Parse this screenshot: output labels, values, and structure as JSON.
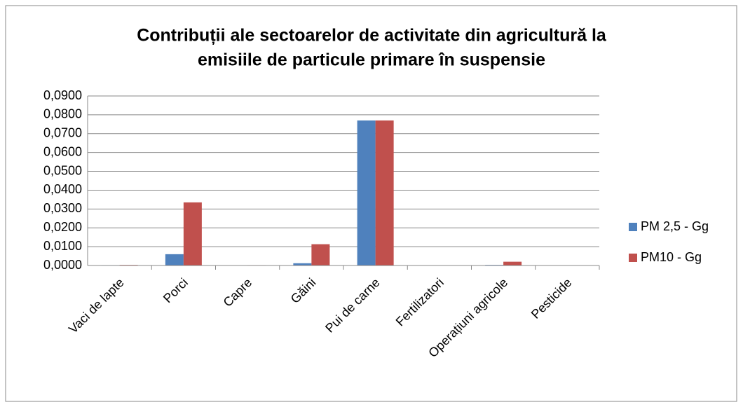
{
  "chart_data": {
    "type": "bar",
    "title": [
      "Contribuții ale sectoarelor de activitate din agricultură la",
      "emisiile de particule primare în suspensie"
    ],
    "categories": [
      "Vaci de lapte",
      "Porci",
      "Capre",
      "Găini",
      "Pui de carne",
      "Fertilizatori",
      "Operațiuni agricole",
      "Pesticide"
    ],
    "series": [
      {
        "name": "PM 2,5 - Gg",
        "color": "#4f81bd",
        "values": [
          0.0002,
          0.006,
          0.0001,
          0.0012,
          0.077,
          0,
          0.0003,
          0
        ]
      },
      {
        "name": "PM10 - Gg",
        "color": "#c0504d",
        "values": [
          0.0003,
          0.0335,
          0.0002,
          0.0113,
          0.077,
          0,
          0.002,
          0
        ]
      }
    ],
    "ylim": [
      0,
      0.09
    ],
    "yticks": [
      {
        "value": 0,
        "label": "0,0000"
      },
      {
        "value": 0.01,
        "label": "0,0100"
      },
      {
        "value": 0.02,
        "label": "0,0200"
      },
      {
        "value": 0.03,
        "label": "0,0300"
      },
      {
        "value": 0.04,
        "label": "0,0400"
      },
      {
        "value": 0.05,
        "label": "0,0500"
      },
      {
        "value": 0.06,
        "label": "0,0600"
      },
      {
        "value": 0.07,
        "label": "0,0700"
      },
      {
        "value": 0.08,
        "label": "0,0800"
      },
      {
        "value": 0.09,
        "label": "0,0900"
      }
    ],
    "grid": true,
    "legend": "right"
  }
}
